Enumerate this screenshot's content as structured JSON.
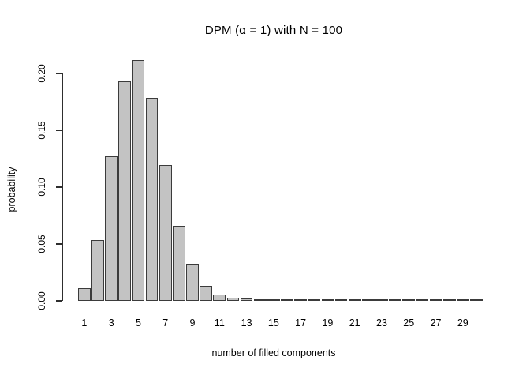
{
  "chart_data": {
    "type": "bar",
    "title": "DPM (α = 1) with N = 100",
    "xlabel": "number of filled components",
    "ylabel": "probability",
    "categories": [
      1,
      2,
      3,
      4,
      5,
      6,
      7,
      8,
      9,
      10,
      11,
      12,
      13,
      14,
      15,
      16,
      17,
      18,
      19,
      20,
      21,
      22,
      23,
      24,
      25,
      26,
      27,
      28,
      29,
      30
    ],
    "values": [
      0.01,
      0.052,
      0.126,
      0.192,
      0.211,
      0.177,
      0.118,
      0.065,
      0.031,
      0.012,
      0.004,
      0.0015,
      0.0005,
      0.0001,
      0,
      0,
      0,
      0,
      0,
      0,
      0,
      0,
      0,
      0,
      0,
      0,
      0,
      0,
      0,
      0
    ],
    "x_tick_labels": [
      "1",
      "3",
      "5",
      "7",
      "9",
      "11",
      "13",
      "15",
      "17",
      "19",
      "21",
      "23",
      "25",
      "27",
      "29"
    ],
    "y_tick_labels": [
      "0.00",
      "0.05",
      "0.10",
      "0.15",
      "0.20"
    ],
    "ylim": [
      0,
      0.2
    ],
    "grid": false,
    "legend_position": "none",
    "colors": {
      "bar_fill": "#c3c3c3",
      "bar_border": "#3b3b3b",
      "axis": "#2e2e2e",
      "text": "#000000",
      "background": "#ffffff"
    }
  }
}
